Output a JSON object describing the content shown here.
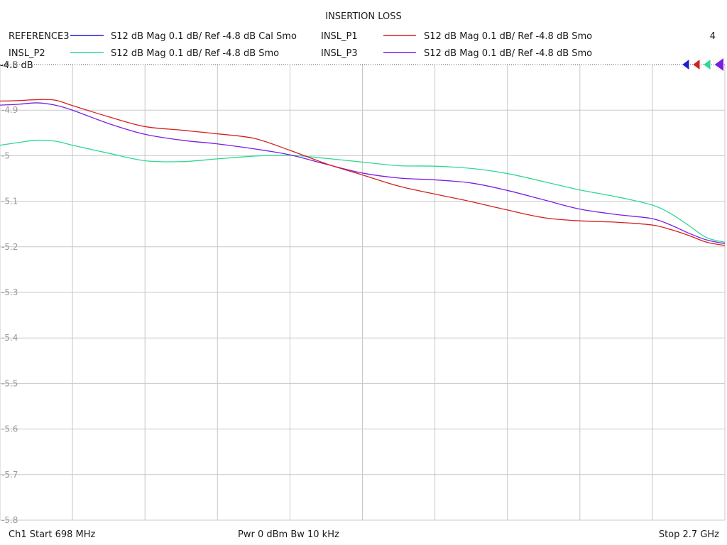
{
  "chart_data": {
    "type": "line",
    "title": "INSERTION LOSS",
    "channel_count": "4",
    "reference_label": "-4.8 dB",
    "ylim": [
      -5.8,
      -4.8
    ],
    "yticks": [
      "-4.8",
      "-4.9",
      "-5",
      "-5.1",
      "-5.2",
      "-5.3",
      "-5.4",
      "-5.5",
      "-5.6",
      "-5.7",
      "-5.8"
    ],
    "xlim": [
      698,
      2700
    ],
    "x_divisions": 10,
    "grid": true,
    "footer": {
      "start": "Ch1  Start  698 MHz",
      "power": "Pwr  0 dBm  Bw  10 kHz",
      "stop": "Stop  2.7 GHz"
    },
    "legend": [
      {
        "name": "REFERENCE3",
        "desc": "S12  dB Mag  0.1 dB/ Ref -4.8 dB  Cal Smo",
        "color": "#1f1fcf"
      },
      {
        "name": "INSL_P1",
        "desc": "S12  dB Mag  0.1 dB/ Ref -4.8 dB  Smo",
        "color": "#d42020"
      },
      {
        "name": "INSL_P2",
        "desc": "S12  dB Mag  0.1 dB/ Ref -4.8 dB  Smo",
        "color": "#2ed88f"
      },
      {
        "name": "INSL_P3",
        "desc": "S12  dB Mag  0.1 dB/ Ref -4.8 dB  Smo",
        "color": "#7a1fe0"
      }
    ],
    "series": [
      {
        "name": "INSL_P1",
        "color": "#d42020",
        "x": [
          698,
          750,
          800,
          850,
          898,
          1000,
          1098,
          1200,
          1298,
          1400,
          1498,
          1600,
          1698,
          1800,
          1898,
          2000,
          2098,
          2200,
          2298,
          2400,
          2498,
          2550,
          2600,
          2650,
          2700
        ],
        "y": [
          -4.88,
          -4.879,
          -4.877,
          -4.878,
          -4.89,
          -4.915,
          -4.936,
          -4.944,
          -4.952,
          -4.962,
          -4.988,
          -5.018,
          -5.042,
          -5.067,
          -5.084,
          -5.101,
          -5.119,
          -5.136,
          -5.143,
          -5.146,
          -5.152,
          -5.162,
          -5.175,
          -5.19,
          -5.197
        ]
      },
      {
        "name": "INSL_P2",
        "color": "#2ed88f",
        "x": [
          698,
          750,
          800,
          850,
          898,
          1000,
          1098,
          1200,
          1298,
          1400,
          1498,
          1600,
          1698,
          1800,
          1898,
          2000,
          2098,
          2200,
          2298,
          2400,
          2498,
          2550,
          2600,
          2650,
          2700
        ],
        "y": [
          -4.977,
          -4.971,
          -4.966,
          -4.968,
          -4.977,
          -4.995,
          -5.011,
          -5.013,
          -5.007,
          -5.001,
          -4.999,
          -5.006,
          -5.014,
          -5.022,
          -5.023,
          -5.028,
          -5.039,
          -5.057,
          -5.075,
          -5.09,
          -5.108,
          -5.127,
          -5.153,
          -5.18,
          -5.19
        ]
      },
      {
        "name": "INSL_P3",
        "color": "#7a1fe0",
        "x": [
          698,
          750,
          800,
          850,
          898,
          1000,
          1098,
          1200,
          1298,
          1400,
          1498,
          1600,
          1698,
          1800,
          1898,
          2000,
          2098,
          2200,
          2298,
          2400,
          2498,
          2550,
          2600,
          2650,
          2700
        ],
        "y": [
          -4.889,
          -4.887,
          -4.884,
          -4.889,
          -4.9,
          -4.93,
          -4.953,
          -4.966,
          -4.974,
          -4.985,
          -4.998,
          -5.019,
          -5.038,
          -5.049,
          -5.053,
          -5.06,
          -5.076,
          -5.097,
          -5.117,
          -5.129,
          -5.138,
          -5.152,
          -5.17,
          -5.185,
          -5.193
        ]
      }
    ]
  }
}
